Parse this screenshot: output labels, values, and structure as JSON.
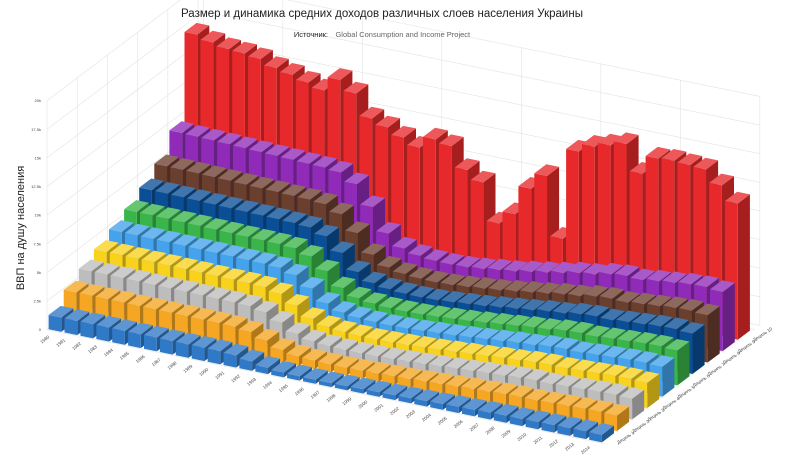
{
  "chart_data": {
    "type": "bar",
    "title": "Размер и динамика средних доходов различных слоев населения Украины",
    "subtitle_key": "Источник:",
    "subtitle_value": "Global Consumption and Income Project",
    "ylabel": "ВВП на душу населения",
    "ylim": [
      0,
      20000
    ],
    "yticks": [
      "0",
      "2.5k",
      "5k",
      "7.5k",
      "10k",
      "12.5k",
      "15k",
      "17.5k",
      "20k"
    ],
    "categories": [
      "1980",
      "1981",
      "1982",
      "1983",
      "1984",
      "1985",
      "1986",
      "1987",
      "1988",
      "1989",
      "1990",
      "1991",
      "1992",
      "1993",
      "1994",
      "1995",
      "1996",
      "1997",
      "1998",
      "1999",
      "2000",
      "2001",
      "2002",
      "2003",
      "2004",
      "2005",
      "2006",
      "2007",
      "2008",
      "2009",
      "2010",
      "2011",
      "2012",
      "2013",
      "2014"
    ],
    "series": [
      {
        "name": "Дециль 1",
        "color": "#2f79c7",
        "values": [
          1250,
          1230,
          1230,
          1220,
          1210,
          1200,
          1200,
          1180,
          1170,
          1170,
          1150,
          1060,
          830,
          560,
          420,
          380,
          360,
          350,
          360,
          380,
          400,
          420,
          450,
          480,
          510,
          550,
          570,
          610,
          630,
          620,
          640,
          660,
          680,
          690,
          670
        ]
      },
      {
        "name": "Дециль 2",
        "color": "#f5a623",
        "values": [
          2450,
          2430,
          2420,
          2410,
          2390,
          2380,
          2370,
          2350,
          2330,
          2320,
          2280,
          2100,
          1650,
          1120,
          850,
          760,
          720,
          700,
          720,
          760,
          800,
          840,
          900,
          960,
          1020,
          1100,
          1140,
          1220,
          1260,
          1240,
          1280,
          1320,
          1360,
          1380,
          1340
        ]
      },
      {
        "name": "Дециль 3",
        "color": "#bdbdbd",
        "values": [
          3300,
          3280,
          3270,
          3250,
          3230,
          3210,
          3200,
          3170,
          3150,
          3130,
          3080,
          2830,
          2220,
          1510,
          1150,
          1030,
          970,
          950,
          970,
          1020,
          1080,
          1140,
          1220,
          1300,
          1380,
          1480,
          1540,
          1650,
          1700,
          1670,
          1730,
          1780,
          1840,
          1860,
          1810
        ]
      },
      {
        "name": "Дециль 4",
        "color": "#f8d21c",
        "values": [
          4000,
          3980,
          3960,
          3940,
          3920,
          3890,
          3880,
          3850,
          3820,
          3800,
          3740,
          3430,
          2700,
          1830,
          1400,
          1250,
          1180,
          1150,
          1180,
          1240,
          1310,
          1380,
          1480,
          1580,
          1680,
          1800,
          1870,
          2000,
          2060,
          2030,
          2100,
          2160,
          2230,
          2260,
          2200
        ]
      },
      {
        "name": "Дециль 5",
        "color": "#44a3ec",
        "values": [
          4750,
          4720,
          4700,
          4680,
          4650,
          4620,
          4600,
          4570,
          4540,
          4510,
          4440,
          4070,
          3200,
          2170,
          1660,
          1480,
          1400,
          1370,
          1400,
          1470,
          1560,
          1640,
          1760,
          1880,
          2000,
          2140,
          2220,
          2380,
          2450,
          2410,
          2500,
          2570,
          2650,
          2680,
          2610
        ]
      },
      {
        "name": "Дециль 6",
        "color": "#3ab549",
        "values": [
          5500,
          5470,
          5450,
          5420,
          5390,
          5350,
          5330,
          5290,
          5260,
          5230,
          5140,
          4720,
          3710,
          2520,
          1920,
          1720,
          1620,
          1590,
          1620,
          1700,
          1800,
          1900,
          2040,
          2180,
          2320,
          2480,
          2580,
          2760,
          2840,
          2800,
          2900,
          2980,
          3070,
          3110,
          3030
        ]
      },
      {
        "name": "Дециль 7",
        "color": "#0a4f96",
        "values": [
          6400,
          6370,
          6340,
          6310,
          6270,
          6230,
          6200,
          6160,
          6120,
          6080,
          5980,
          5490,
          4320,
          2930,
          2240,
          2000,
          1890,
          1850,
          1890,
          1980,
          2100,
          2210,
          2380,
          2540,
          2700,
          2890,
          3000,
          3210,
          3310,
          3260,
          3380,
          3470,
          3580,
          3620,
          3520
        ]
      },
      {
        "name": "Дециль 8",
        "color": "#6b3f2e",
        "values": [
          7500,
          7460,
          7430,
          7390,
          7350,
          7300,
          7260,
          7220,
          7170,
          7130,
          7010,
          6430,
          5060,
          3440,
          2620,
          2340,
          2210,
          2170,
          2210,
          2320,
          2460,
          2590,
          2780,
          2970,
          3160,
          3380,
          3510,
          3760,
          3870,
          3810,
          3950,
          4060,
          4190,
          4240,
          4130
        ]
      },
      {
        "name": "Дециль 9",
        "color": "#8f2bb8",
        "values": [
          9400,
          9350,
          9310,
          9260,
          9210,
          9150,
          9100,
          9040,
          8980,
          8930,
          8780,
          8050,
          6340,
          4300,
          3280,
          2930,
          2770,
          2720,
          2770,
          2900,
          3080,
          3240,
          3490,
          3720,
          3960,
          4240,
          4400,
          4710,
          4850,
          4770,
          4950,
          5090,
          5250,
          5310,
          5170
        ]
      },
      {
        "name": "Дециль 10",
        "color": "#e8292b",
        "values": [
          17000,
          16600,
          16300,
          16200,
          16000,
          15500,
          15200,
          14800,
          14400,
          15600,
          14700,
          12800,
          12300,
          11700,
          11100,
          12100,
          11800,
          10000,
          9200,
          5900,
          7000,
          9500,
          10900,
          5700,
          13600,
          14300,
          14700,
          15100,
          12800,
          14400,
          14500,
          14400,
          14300,
          13200,
          11900
        ]
      }
    ]
  }
}
